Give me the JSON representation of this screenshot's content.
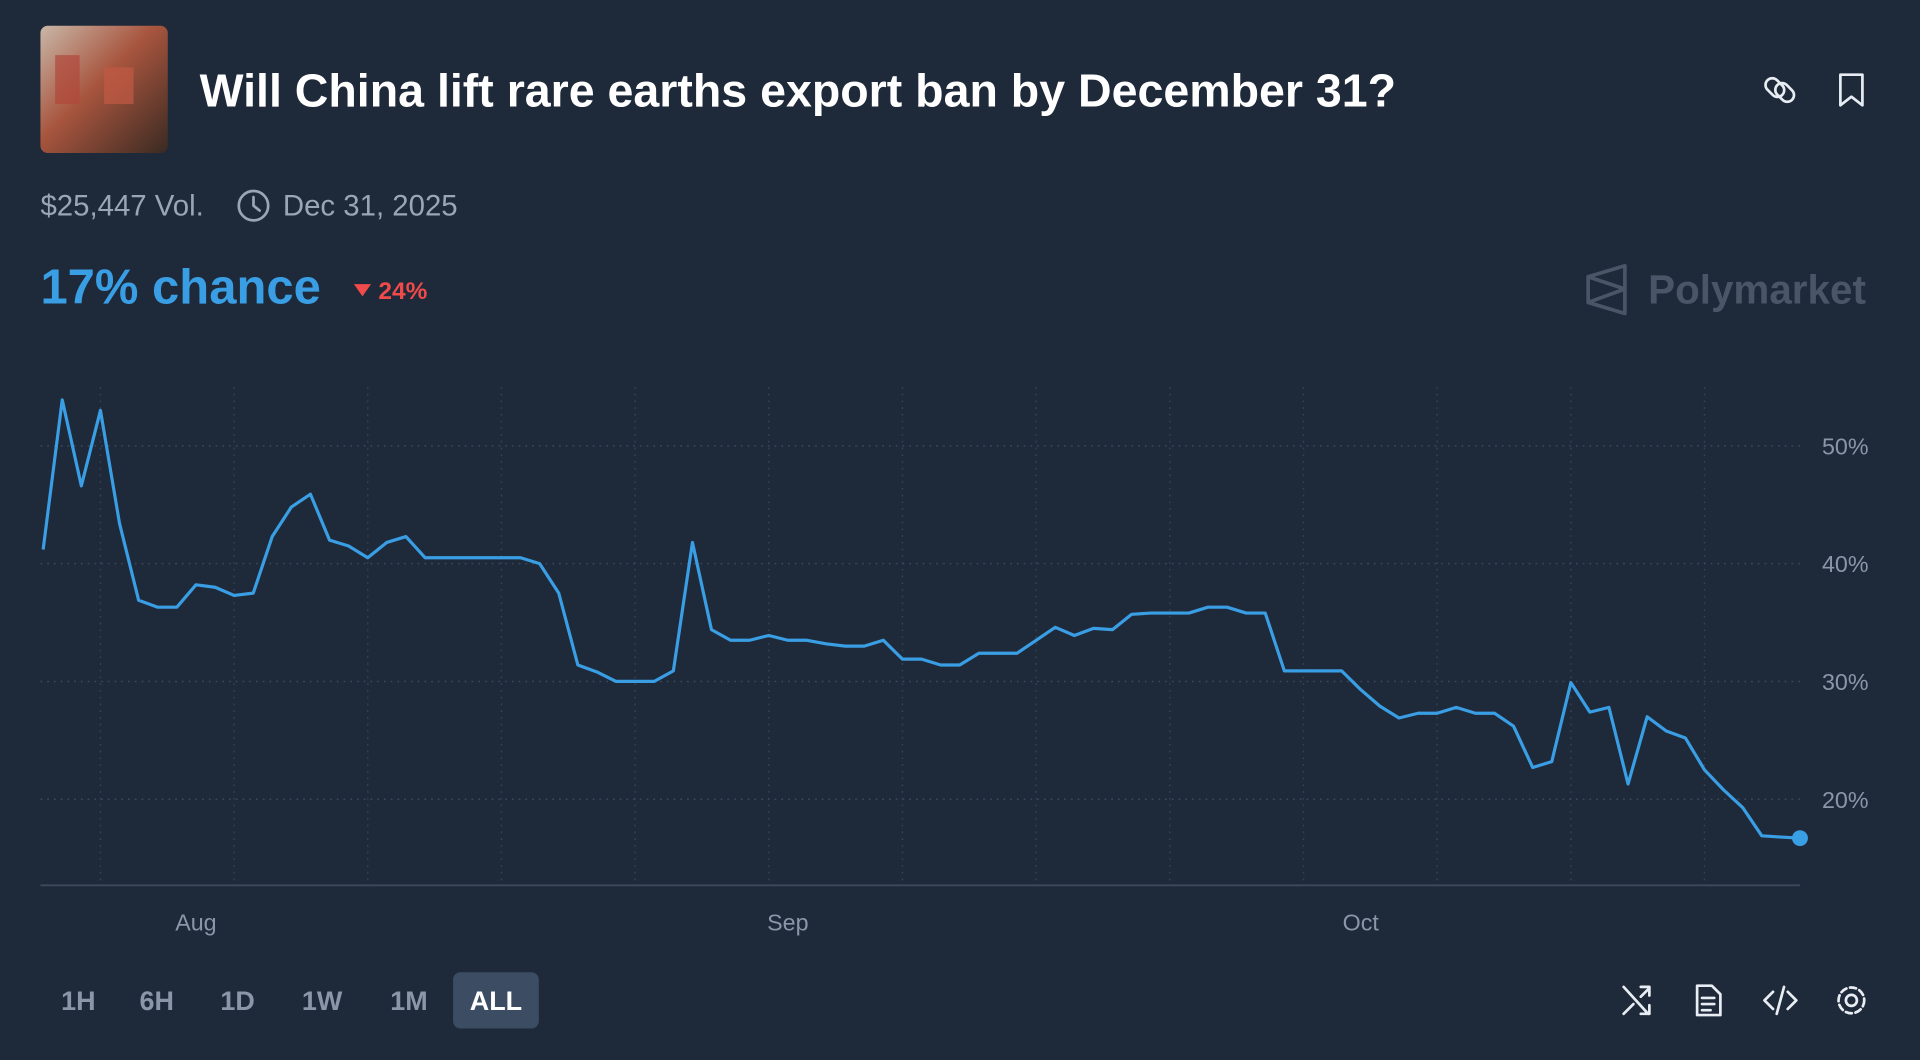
{
  "header": {
    "title": "Will China lift rare earths export ban by December 31?"
  },
  "stats": {
    "volume": "$25,447 Vol.",
    "end_date": "Dec 31, 2025"
  },
  "chance": {
    "label": "17% chance",
    "change": "24%"
  },
  "brand": "Polymarket",
  "chart_data": {
    "type": "line",
    "color": "#3a9ee4",
    "categories": [
      null,
      null,
      null,
      null,
      null,
      null,
      null,
      null,
      "Aug",
      null,
      null,
      null,
      null,
      null,
      null,
      null,
      null,
      null,
      null,
      null,
      null,
      null,
      null,
      null,
      null,
      null,
      null,
      null,
      null,
      null,
      null,
      null,
      null,
      null,
      null,
      null,
      null,
      null,
      null,
      "Sep",
      null,
      null,
      null,
      null,
      null,
      null,
      null,
      null,
      null,
      null,
      null,
      null,
      null,
      null,
      null,
      null,
      null,
      null,
      null,
      null,
      null,
      null,
      null,
      null,
      null,
      null,
      null,
      null,
      null,
      "Oct",
      null,
      null,
      null,
      null,
      null,
      null,
      null,
      null,
      null,
      null,
      null,
      null,
      null,
      null,
      null,
      null,
      null,
      null,
      null,
      null,
      null,
      null,
      null
    ],
    "values": [
      41.2,
      53.9,
      46.6,
      53.0,
      43.4,
      36.9,
      36.3,
      36.3,
      38.2,
      38.0,
      37.3,
      37.5,
      42.3,
      44.8,
      45.9,
      42.0,
      41.5,
      40.5,
      41.8,
      42.3,
      40.5,
      40.5,
      40.5,
      40.5,
      40.5,
      40.5,
      40.0,
      37.5,
      31.4,
      30.8,
      30.0,
      30.0,
      30.0,
      30.9,
      41.8,
      34.4,
      33.5,
      33.5,
      33.9,
      33.5,
      33.5,
      33.2,
      33.0,
      33.0,
      33.5,
      31.9,
      31.9,
      31.4,
      31.4,
      32.4,
      32.4,
      32.4,
      33.5,
      34.6,
      33.9,
      34.5,
      34.4,
      35.7,
      35.8,
      35.8,
      35.8,
      36.3,
      36.3,
      35.8,
      35.8,
      30.9,
      30.9,
      30.9,
      30.9,
      29.3,
      27.9,
      26.9,
      27.3,
      27.3,
      27.8,
      27.3,
      27.3,
      26.2,
      22.7,
      23.2,
      29.9,
      27.4,
      27.8,
      21.3,
      27.0,
      25.8,
      25.2,
      22.5,
      20.8,
      19.3,
      16.9,
      16.8,
      16.7
    ],
    "ylim": [
      12.7,
      55
    ],
    "yticks": [
      {
        "value": 20,
        "label": "20%"
      },
      {
        "value": 30,
        "label": "30%"
      },
      {
        "value": 40,
        "label": "40%"
      },
      {
        "value": 50,
        "label": "50%"
      }
    ],
    "grid": true
  },
  "timeframes": [
    "1H",
    "6H",
    "1D",
    "1W",
    "1M",
    "ALL"
  ],
  "selected": "ALL"
}
